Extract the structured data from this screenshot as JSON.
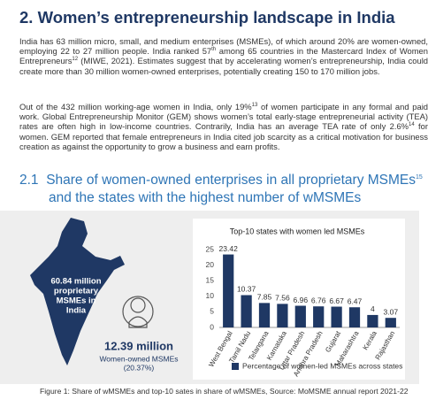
{
  "header": {
    "title": "2. Women’s entrepreneurship landscape in India"
  },
  "paragraphs": [
    [
      "India has 63 million micro, small, and medium enterprises (MSMEs), of which around 20% are women-owned, employing 22 to 27 million people. India ranked 57",
      "th",
      " among 65 countries in the Mastercard Index of Women Entrepreneurs",
      "12",
      " (MIWE, 2021). Estimates suggest that by accelerating women’s entrepreneurship, India could create more than 30 million women-owned enterprises, potentially creating 150 to 170 million jobs."
    ],
    [
      "Out of the 432 million working-age women in India, only 19%",
      "13",
      " of women participate in any formal and paid work. Global Entrepreneurship Monitor (GEM) shows women’s total early-stage entrepreneurial activity (TEA) rates are often high in low-income countries. Contrarily, India has an average TEA rate of only 2.6%",
      "14",
      " for women. GEM reported that female entrepreneurs in India cited job scarcity as a critical motivation for business creation as against the opportunity to grow a business and earn profits."
    ]
  ],
  "section": {
    "number": "2.1",
    "title_line1": "Share of women-owned enterprises in all proprietary MSMEs",
    "note": "15",
    "title_line2": "and the states with the highest number of wMSMEs"
  },
  "infographic": {
    "total_lines": [
      "60.84 million",
      "proprietary",
      "MSMEs in",
      "India"
    ],
    "women_count": "12.39 million",
    "women_lines": [
      "Women-owned MSMEs",
      "(20.37%)"
    ]
  },
  "chart_data": {
    "type": "bar",
    "title": "Top-10 states with women led MSMEs",
    "categories": [
      "West Bengal",
      "Tamil Nadu",
      "Telangana",
      "Karnataka",
      "Uttar Pradesh",
      "Andhra Pradesh",
      "Gujarat",
      "Maharashtra",
      "Kerala",
      "Rajasthan"
    ],
    "series": [
      {
        "name": "Percentage of women-led MSMEs across states",
        "color": "#1f3864",
        "values": [
          23.42,
          10.37,
          7.85,
          7.56,
          6.96,
          6.76,
          6.67,
          6.47,
          4,
          3.07
        ]
      }
    ],
    "ylim": [
      0,
      25
    ],
    "yticks": [
      0,
      5,
      10,
      15,
      20,
      25
    ],
    "grid": false,
    "legend": "bottom"
  },
  "caption": "Figure 1: Share of wMSMEs and top-10 sates in share of wMSMEs, Source: MoMSME annual report 2021-22"
}
